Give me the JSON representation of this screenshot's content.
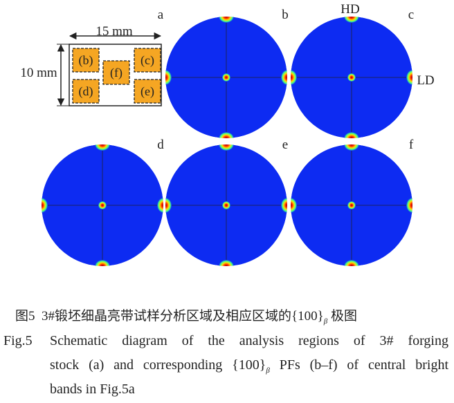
{
  "figure": {
    "panel_labels": [
      "a",
      "b",
      "c",
      "d",
      "e",
      "f"
    ],
    "schematic": {
      "width_label": "15 mm",
      "height_label": "10 mm",
      "regions": [
        "(b)",
        "(c)",
        "(d)",
        "(e)",
        "(f)"
      ]
    },
    "axis_labels": {
      "hd": "HD",
      "ld": "LD"
    },
    "caption_cn": {
      "label": "图5",
      "text": "3#锻坯细晶亮带试样分析区域及相应区域的{100}",
      "subscript": "β",
      "tail": "极图"
    },
    "caption_en": {
      "label": "Fig.5",
      "line1": "Schematic diagram of the analysis regions of 3# forging",
      "line2_start": "stock (a) and corresponding {100}",
      "subscript": "β",
      "line2_end": " PFs (b–f) of central bright",
      "line3": "bands in Fig.5a"
    }
  }
}
